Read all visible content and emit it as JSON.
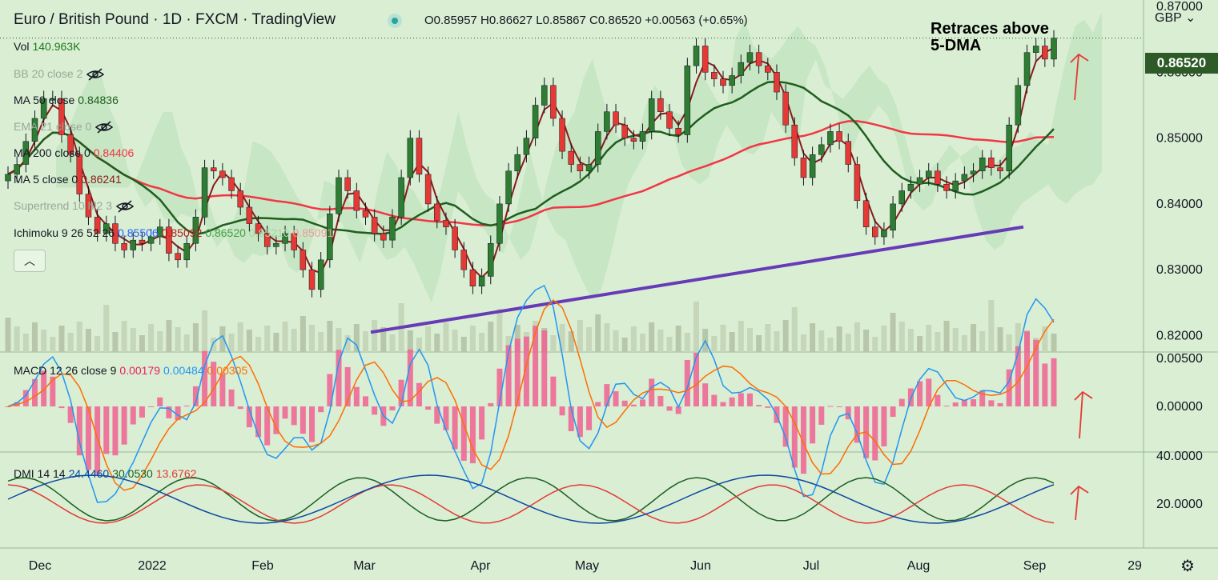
{
  "header": {
    "title": "Euro / British Pound · 1D · FXCM · TradingView",
    "ohlc": "O0.85957 H0.86627 L0.85867 C0.86520 +0.00563 (+0.65%)",
    "currency": "GBP"
  },
  "annotation": "Retraces above\n5-DMA",
  "indicators": {
    "vol": {
      "label": "Vol",
      "value": "140.963K",
      "color": "#1b7a1b"
    },
    "bb": {
      "label": "BB 20 close 2"
    },
    "ma50": {
      "label": "MA 50 close",
      "value": "0.84836",
      "color": "#1e5e1e"
    },
    "ema": {
      "label": "EMA 21 close 0"
    },
    "ma200": {
      "label": "MA 200 close 0",
      "value": "0.84406",
      "color": "#f23645"
    },
    "ma5": {
      "label": "MA 5 close 0",
      "value": "0.86241",
      "color": "#8b1a1a"
    },
    "supertrend": {
      "label": "Supertrend 10 hl2 3"
    },
    "ichimoku": {
      "label": "Ichimoku 9 26 52 26",
      "values": [
        "0.85506",
        "0.85092",
        "0.86520",
        "0.85210",
        "0.85091"
      ],
      "colors": [
        "#2962ff",
        "#b71c1c",
        "#43a047",
        "#a5d6a7",
        "#ef9a9a"
      ]
    },
    "collapse_icon": "chevron-up-icon",
    "hidden_icon": "eye-crossed-icon"
  },
  "macd": {
    "label": "MACD 12 26 close 9",
    "values": [
      "0.00179",
      "0.00484",
      "0.00305"
    ],
    "colors": [
      "#e91e63",
      "#2196f3",
      "#ff6d00"
    ]
  },
  "dmi": {
    "label": "DMI 14 14",
    "values": [
      "24.4460",
      "30.0530",
      "13.6762"
    ],
    "colors": [
      "#0d47a1",
      "#1b5e20",
      "#e53935"
    ]
  },
  "price_axis": {
    "labels": [
      "0.87000",
      "0.86000",
      "0.85000",
      "0.84000",
      "0.83000",
      "0.82000"
    ],
    "current": "0.86520"
  },
  "macd_axis": {
    "labels": [
      "0.00500",
      "0.00000"
    ]
  },
  "dmi_axis": {
    "labels": [
      "40.0000",
      "20.0000"
    ]
  },
  "time_axis": {
    "labels": [
      "Dec",
      "2022",
      "Feb",
      "Mar",
      "Apr",
      "May",
      "Jun",
      "Jul",
      "Aug",
      "Sep",
      "29"
    ]
  },
  "chart_data": {
    "type": "candlestick",
    "symbol": "EURGBP",
    "timeframe": "1D",
    "x_labels": [
      "Dec",
      "2022",
      "Feb",
      "Mar",
      "Apr",
      "May",
      "Jun",
      "Jul",
      "Aug",
      "Sep",
      "29"
    ],
    "ylim": [
      0.8175,
      0.8705
    ],
    "closes": [
      0.8445,
      0.846,
      0.8495,
      0.853,
      0.856,
      0.856,
      0.8505,
      0.8475,
      0.8415,
      0.838,
      0.8355,
      0.837,
      0.834,
      0.833,
      0.8345,
      0.834,
      0.835,
      0.8365,
      0.8325,
      0.8315,
      0.834,
      0.838,
      0.8455,
      0.845,
      0.844,
      0.842,
      0.8395,
      0.837,
      0.8355,
      0.8335,
      0.834,
      0.8355,
      0.833,
      0.83,
      0.827,
      0.8315,
      0.8385,
      0.844,
      0.842,
      0.839,
      0.838,
      0.8355,
      0.8345,
      0.838,
      0.844,
      0.85,
      0.8445,
      0.84,
      0.8375,
      0.8365,
      0.833,
      0.83,
      0.8275,
      0.829,
      0.834,
      0.84,
      0.845,
      0.8475,
      0.85,
      0.855,
      0.858,
      0.853,
      0.848,
      0.846,
      0.845,
      0.846,
      0.851,
      0.854,
      0.852,
      0.85,
      0.8495,
      0.851,
      0.856,
      0.854,
      0.8515,
      0.8505,
      0.861,
      0.864,
      0.86,
      0.859,
      0.858,
      0.8595,
      0.8615,
      0.863,
      0.861,
      0.86,
      0.857,
      0.852,
      0.847,
      0.844,
      0.8475,
      0.849,
      0.851,
      0.8495,
      0.846,
      0.8405,
      0.8365,
      0.835,
      0.836,
      0.84,
      0.842,
      0.843,
      0.844,
      0.845,
      0.843,
      0.842,
      0.8435,
      0.8445,
      0.845,
      0.847,
      0.8455,
      0.845,
      0.852,
      0.858,
      0.863,
      0.864,
      0.862,
      0.8652
    ],
    "volume_value": "140.963K",
    "ma50_value": "0.84836",
    "ma200_value": "0.84406",
    "ma5_value": "0.86241",
    "trendline": {
      "from": [
        "Mar",
        0.8205
      ],
      "to": [
        "Sep",
        0.8365
      ]
    },
    "macd_values": {
      "hist": 0.00179,
      "macd": 0.00484,
      "signal": 0.00305
    },
    "dmi_values": {
      "adx": 24.446,
      "plus_di": 30.053,
      "minus_di": 13.6762
    }
  }
}
